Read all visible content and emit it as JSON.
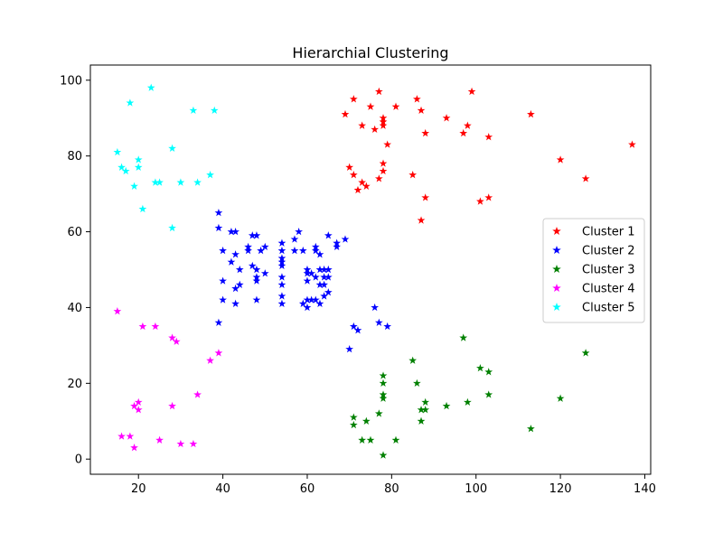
{
  "chart_data": {
    "type": "scatter",
    "title": "Hierarchial Clustering",
    "xlabel": "",
    "ylabel": "",
    "xlim": [
      8.6,
      141.4
    ],
    "ylim": [
      -4,
      104
    ],
    "xticks": [
      20,
      40,
      60,
      80,
      100,
      120,
      140
    ],
    "yticks": [
      0,
      20,
      40,
      60,
      80,
      100
    ],
    "grid": false,
    "legend_position": "center-right",
    "marker": "star",
    "series": [
      {
        "name": "Cluster 1",
        "color": "#ff0000",
        "points": [
          [
            69,
            91
          ],
          [
            70,
            77
          ],
          [
            71,
            95
          ],
          [
            71,
            75
          ],
          [
            72,
            71
          ],
          [
            73,
            88
          ],
          [
            73,
            73
          ],
          [
            74,
            72
          ],
          [
            75,
            93
          ],
          [
            76,
            87
          ],
          [
            77,
            97
          ],
          [
            77,
            74
          ],
          [
            78,
            90
          ],
          [
            78,
            89
          ],
          [
            78,
            88
          ],
          [
            78,
            78
          ],
          [
            78,
            76
          ],
          [
            79,
            83
          ],
          [
            81,
            93
          ],
          [
            85,
            75
          ],
          [
            86,
            95
          ],
          [
            87,
            92
          ],
          [
            87,
            63
          ],
          [
            88,
            86
          ],
          [
            88,
            69
          ],
          [
            93,
            90
          ],
          [
            97,
            86
          ],
          [
            98,
            88
          ],
          [
            99,
            97
          ],
          [
            101,
            68
          ],
          [
            103,
            85
          ],
          [
            103,
            69
          ],
          [
            113,
            91
          ],
          [
            120,
            79
          ],
          [
            126,
            74
          ],
          [
            137,
            83
          ]
        ]
      },
      {
        "name": "Cluster 2",
        "color": "#0000ff",
        "points": [
          [
            39,
            65
          ],
          [
            39,
            61
          ],
          [
            39,
            36
          ],
          [
            40,
            55
          ],
          [
            40,
            47
          ],
          [
            40,
            42
          ],
          [
            42,
            60
          ],
          [
            42,
            52
          ],
          [
            43,
            60
          ],
          [
            43,
            54
          ],
          [
            43,
            45
          ],
          [
            43,
            41
          ],
          [
            44,
            50
          ],
          [
            44,
            46
          ],
          [
            46,
            56
          ],
          [
            46,
            55
          ],
          [
            47,
            59
          ],
          [
            47,
            51
          ],
          [
            48,
            59
          ],
          [
            48,
            50
          ],
          [
            48,
            48
          ],
          [
            48,
            47
          ],
          [
            48,
            42
          ],
          [
            49,
            55
          ],
          [
            50,
            56
          ],
          [
            50,
            49
          ],
          [
            54,
            57
          ],
          [
            54,
            55
          ],
          [
            54,
            53
          ],
          [
            54,
            52
          ],
          [
            54,
            51
          ],
          [
            54,
            48
          ],
          [
            54,
            46
          ],
          [
            54,
            43
          ],
          [
            54,
            41
          ],
          [
            57,
            58
          ],
          [
            57,
            55
          ],
          [
            58,
            60
          ],
          [
            59,
            55
          ],
          [
            59,
            41
          ],
          [
            60,
            50
          ],
          [
            60,
            49
          ],
          [
            60,
            47
          ],
          [
            60,
            42
          ],
          [
            60,
            40
          ],
          [
            61,
            49
          ],
          [
            61,
            42
          ],
          [
            62,
            56
          ],
          [
            62,
            55
          ],
          [
            62,
            48
          ],
          [
            62,
            42
          ],
          [
            63,
            54
          ],
          [
            63,
            50
          ],
          [
            63,
            46
          ],
          [
            63,
            41
          ],
          [
            64,
            50
          ],
          [
            64,
            48
          ],
          [
            64,
            46
          ],
          [
            64,
            43
          ],
          [
            65,
            59
          ],
          [
            65,
            50
          ],
          [
            65,
            48
          ],
          [
            65,
            44
          ],
          [
            67,
            57
          ],
          [
            67,
            56
          ],
          [
            69,
            58
          ],
          [
            70,
            29
          ],
          [
            71,
            35
          ],
          [
            72,
            34
          ],
          [
            76,
            40
          ],
          [
            77,
            36
          ],
          [
            79,
            35
          ]
        ]
      },
      {
        "name": "Cluster 3",
        "color": "#008000",
        "points": [
          [
            71,
            11
          ],
          [
            71,
            9
          ],
          [
            73,
            5
          ],
          [
            74,
            10
          ],
          [
            75,
            5
          ],
          [
            77,
            12
          ],
          [
            78,
            22
          ],
          [
            78,
            20
          ],
          [
            78,
            17
          ],
          [
            78,
            16
          ],
          [
            78,
            1
          ],
          [
            81,
            5
          ],
          [
            85,
            26
          ],
          [
            86,
            20
          ],
          [
            87,
            13
          ],
          [
            87,
            10
          ],
          [
            88,
            15
          ],
          [
            88,
            13
          ],
          [
            93,
            14
          ],
          [
            97,
            32
          ],
          [
            98,
            15
          ],
          [
            101,
            24
          ],
          [
            103,
            23
          ],
          [
            103,
            17
          ],
          [
            113,
            8
          ],
          [
            120,
            16
          ],
          [
            126,
            28
          ]
        ]
      },
      {
        "name": "Cluster 4",
        "color": "#ff00ff",
        "points": [
          [
            15,
            39
          ],
          [
            16,
            6
          ],
          [
            18,
            6
          ],
          [
            19,
            3
          ],
          [
            19,
            14
          ],
          [
            20,
            15
          ],
          [
            20,
            13
          ],
          [
            21,
            35
          ],
          [
            24,
            35
          ],
          [
            25,
            5
          ],
          [
            28,
            32
          ],
          [
            28,
            14
          ],
          [
            29,
            31
          ],
          [
            30,
            4
          ],
          [
            33,
            4
          ],
          [
            34,
            17
          ],
          [
            37,
            26
          ],
          [
            39,
            28
          ]
        ]
      },
      {
        "name": "Cluster 5",
        "color": "#00ffff",
        "points": [
          [
            15,
            81
          ],
          [
            16,
            77
          ],
          [
            17,
            76
          ],
          [
            18,
            94
          ],
          [
            19,
            72
          ],
          [
            20,
            79
          ],
          [
            20,
            77
          ],
          [
            21,
            66
          ],
          [
            23,
            98
          ],
          [
            24,
            73
          ],
          [
            25,
            73
          ],
          [
            28,
            82
          ],
          [
            28,
            61
          ],
          [
            30,
            73
          ],
          [
            33,
            92
          ],
          [
            34,
            73
          ],
          [
            37,
            75
          ],
          [
            38,
            92
          ]
        ]
      }
    ]
  }
}
